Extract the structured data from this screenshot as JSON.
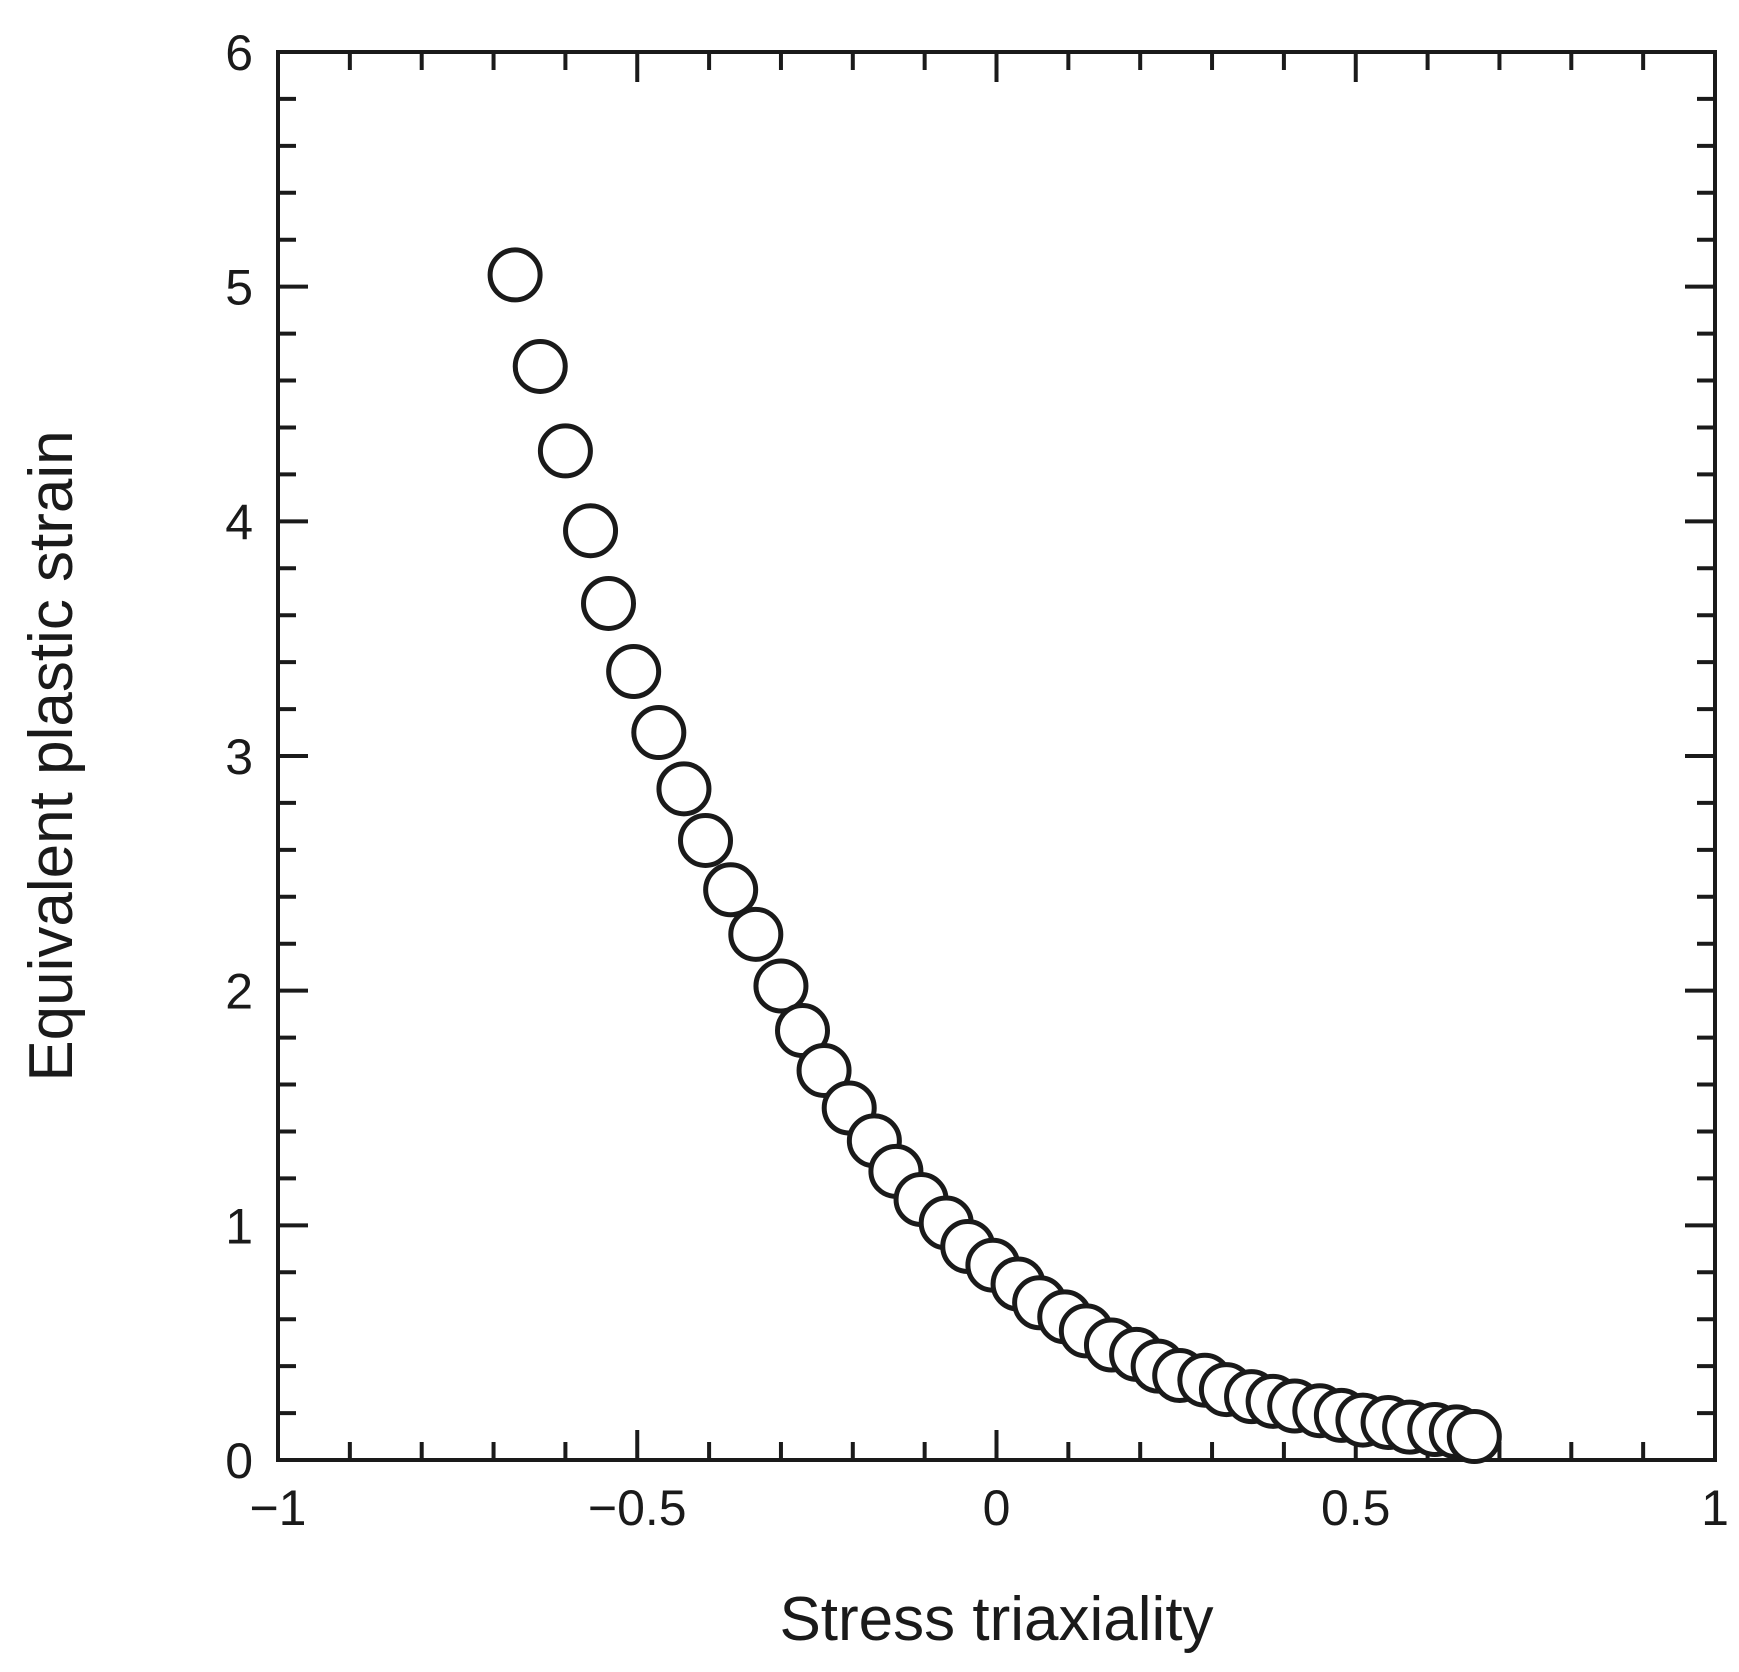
{
  "chart_data": {
    "type": "scatter",
    "title": "",
    "xlabel": "Stress triaxiality",
    "ylabel": "Equivalent plastic strain",
    "xlim": [
      -1,
      1
    ],
    "ylim": [
      0,
      6
    ],
    "x_ticks": [
      -1,
      -0.5,
      0,
      0.5,
      1
    ],
    "x_tick_labels": [
      "−1",
      "−0.5",
      "0",
      "0.5",
      "1"
    ],
    "y_ticks": [
      0,
      1,
      2,
      3,
      4,
      5,
      6
    ],
    "y_tick_labels": [
      "0",
      "1",
      "2",
      "3",
      "4",
      "5",
      "6"
    ],
    "x_minor_step": 0.1,
    "y_minor_step": 0.2,
    "grid": false,
    "marker": "open-circle",
    "series": [
      {
        "x": [
          -0.67,
          -0.635,
          -0.6,
          -0.565,
          -0.54,
          -0.505,
          -0.47,
          -0.435,
          -0.405,
          -0.37,
          -0.335,
          -0.3,
          -0.27,
          -0.24,
          -0.205,
          -0.17,
          -0.14,
          -0.105,
          -0.07,
          -0.04,
          -0.005,
          0.03,
          0.06,
          0.095,
          0.125,
          0.16,
          0.195,
          0.225,
          0.255,
          0.29,
          0.32,
          0.355,
          0.385,
          0.415,
          0.45,
          0.48,
          0.51,
          0.545,
          0.575,
          0.61,
          0.64,
          0.665
        ],
        "y": [
          5.05,
          4.66,
          4.3,
          3.96,
          3.65,
          3.36,
          3.1,
          2.86,
          2.64,
          2.43,
          2.24,
          2.02,
          1.83,
          1.66,
          1.5,
          1.36,
          1.23,
          1.11,
          1.01,
          0.91,
          0.83,
          0.75,
          0.67,
          0.61,
          0.55,
          0.49,
          0.45,
          0.4,
          0.36,
          0.34,
          0.3,
          0.27,
          0.25,
          0.23,
          0.21,
          0.19,
          0.17,
          0.16,
          0.14,
          0.13,
          0.12,
          0.1
        ]
      }
    ]
  }
}
